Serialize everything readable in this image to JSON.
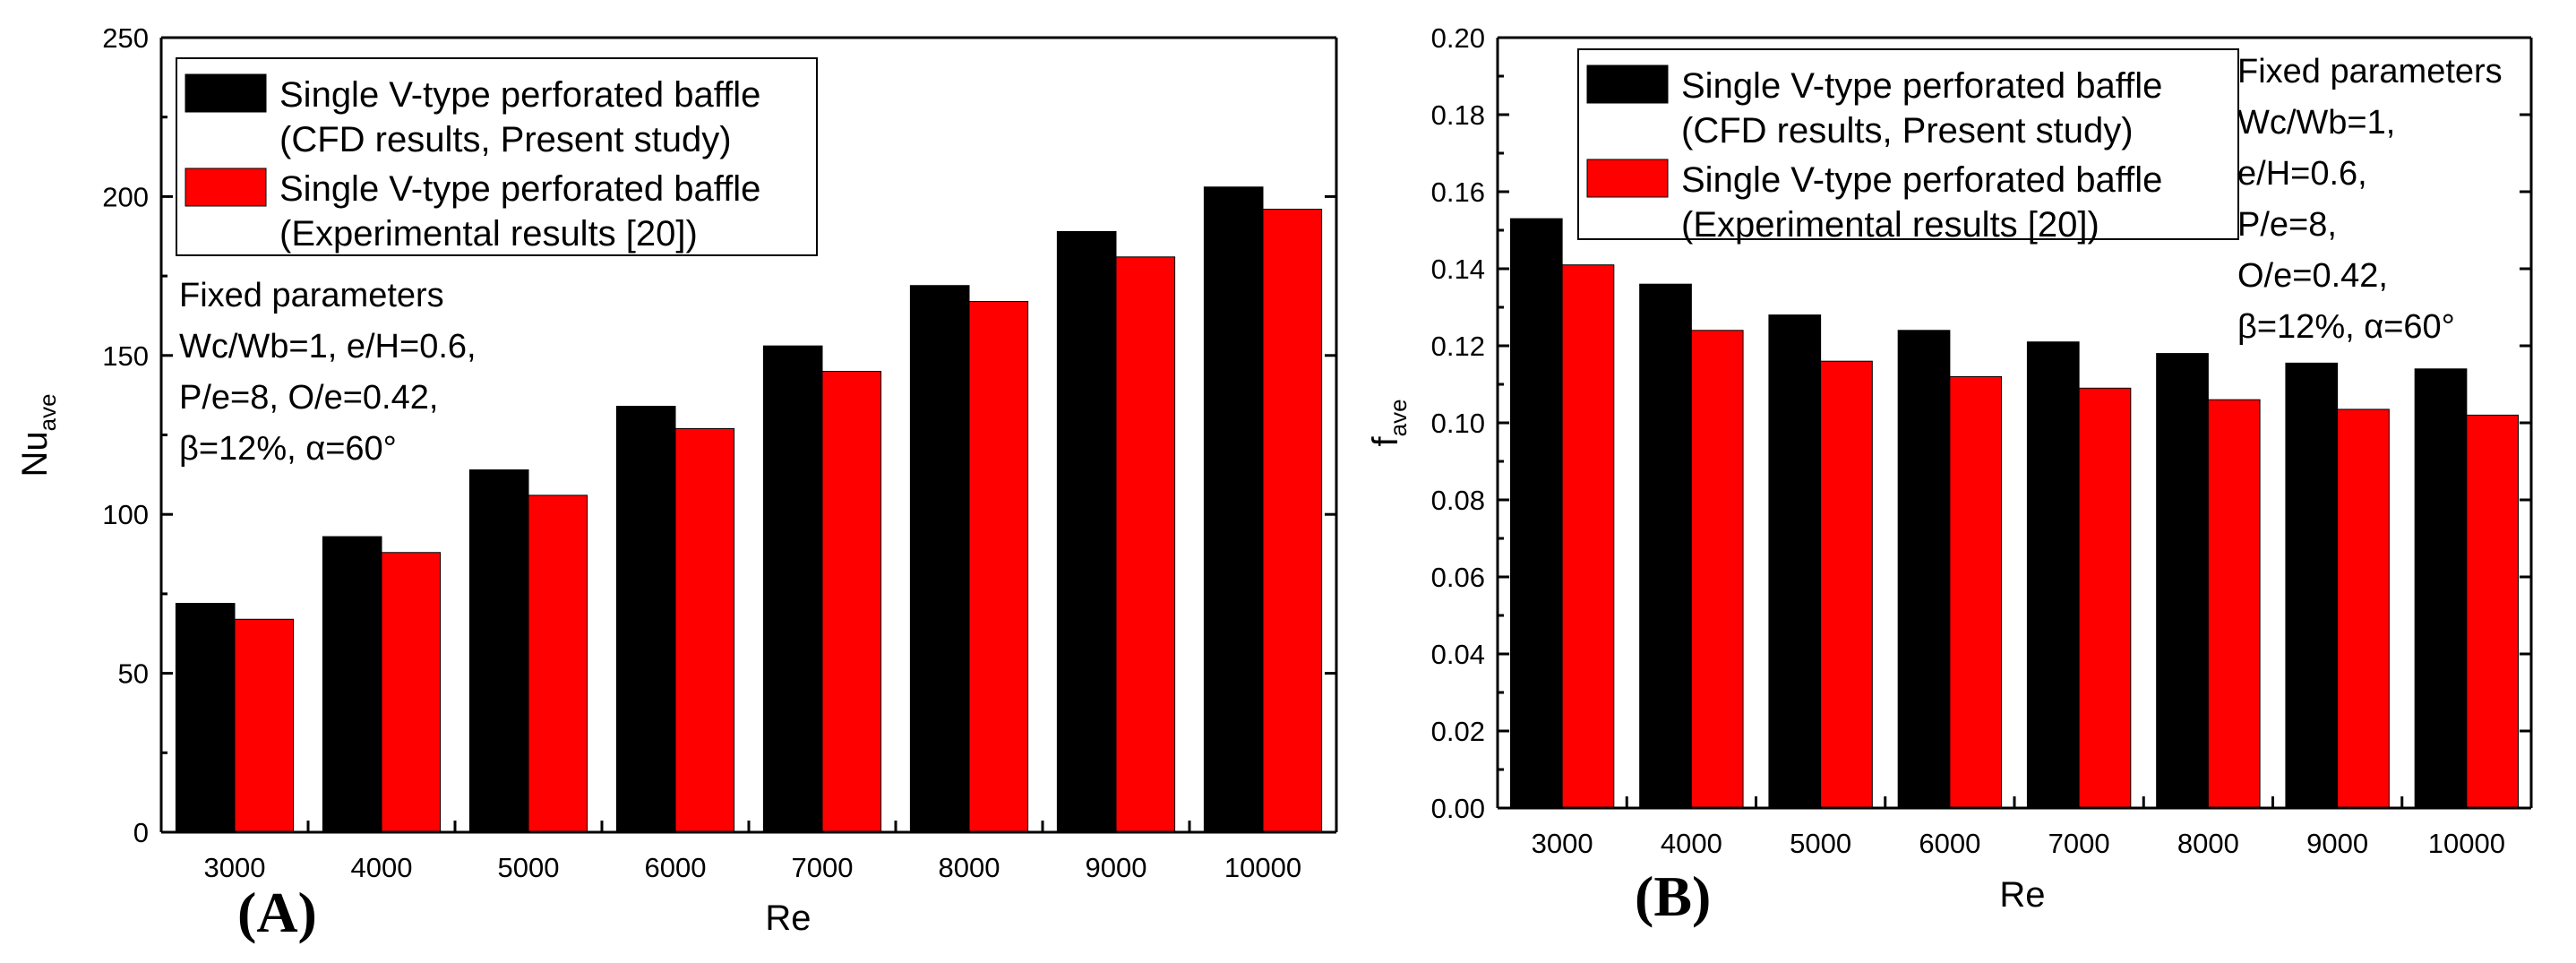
{
  "chart_data": [
    {
      "type": "bar",
      "panel_label": "(A)",
      "categories": [
        "3000",
        "4000",
        "5000",
        "6000",
        "7000",
        "8000",
        "9000",
        "10000"
      ],
      "series": [
        {
          "name": "Single V-type perforated baffle",
          "detail": "(CFD results, Present study)",
          "color": "#000000",
          "values": [
            72,
            93,
            114,
            134,
            153,
            172,
            189,
            203
          ]
        },
        {
          "name": "Single V-type perforated baffle",
          "detail": "(Experimental results [20])",
          "color": "#ff0000",
          "values": [
            67,
            88,
            106,
            127,
            145,
            167,
            181,
            196
          ]
        }
      ],
      "xlabel": "Re",
      "ylabel_main": "Nu",
      "ylabel_sub": "ave",
      "ylim": [
        0,
        250
      ],
      "yticks": [
        0,
        50,
        100,
        150,
        200,
        250
      ],
      "ytick_labels": [
        "0",
        "50",
        "100",
        "150",
        "200",
        "250"
      ],
      "legend_position": "top",
      "annotation": [
        "Fixed parameters",
        "Wc/Wb=1, e/H=0.6,",
        "P/e=8, O/e=0.42,",
        "β=12%, α=60°"
      ]
    },
    {
      "type": "bar",
      "panel_label": "(B)",
      "categories": [
        "3000",
        "4000",
        "5000",
        "6000",
        "7000",
        "8000",
        "9000",
        "10000"
      ],
      "series": [
        {
          "name": "Single V-type perforated baffle",
          "detail": "(CFD results, Present study)",
          "color": "#000000",
          "values": [
            0.153,
            0.136,
            0.128,
            0.124,
            0.121,
            0.118,
            0.1155,
            0.114
          ]
        },
        {
          "name": "Single V-type perforated baffle",
          "detail": "(Experimental results [20])",
          "color": "#ff0000",
          "values": [
            0.141,
            0.124,
            0.116,
            0.112,
            0.109,
            0.106,
            0.1035,
            0.102
          ]
        }
      ],
      "xlabel": "Re",
      "ylabel_main": "f",
      "ylabel_sub": "ave",
      "ylim": [
        0,
        0.2
      ],
      "yticks": [
        0,
        0.02,
        0.04,
        0.06,
        0.08,
        0.1,
        0.12,
        0.14,
        0.16,
        0.18,
        0.2
      ],
      "ytick_labels": [
        "0.00",
        "0.02",
        "0.04",
        "0.06",
        "0.08",
        "0.10",
        "0.12",
        "0.14",
        "0.16",
        "0.18",
        "0.20"
      ],
      "legend_position": "top-left",
      "annotation": [
        "Fixed parameters",
        "Wc/Wb=1,",
        "e/H=0.6,",
        "P/e=8,",
        "O/e=0.42,",
        "β=12%, α=60°"
      ]
    }
  ]
}
